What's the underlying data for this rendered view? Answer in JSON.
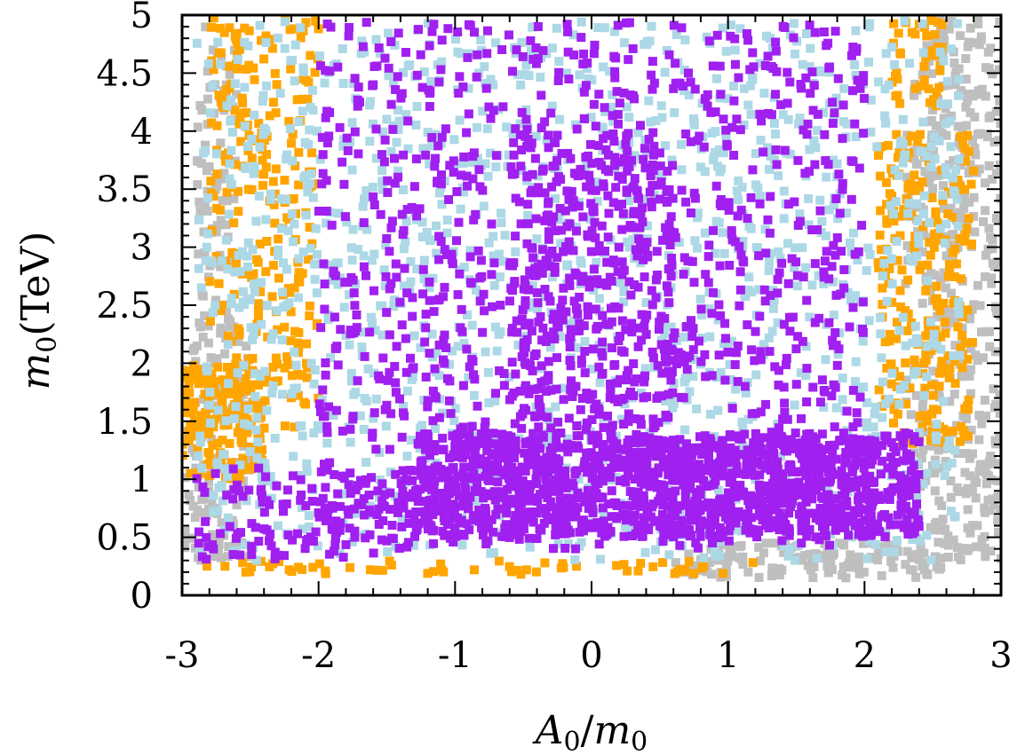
{
  "chart_data": {
    "type": "scatter",
    "title": "",
    "xlabel": "A0/m0",
    "xlabel_parts": {
      "a": "A",
      "a_sub": "0",
      "slash": "/",
      "m": "m",
      "m_sub": "0"
    },
    "ylabel": "m0(TeV)",
    "ylabel_parts": {
      "m": "m",
      "m_sub": "0",
      "unit": "(TeV)"
    },
    "xlim": [
      -3,
      3
    ],
    "ylim": [
      0,
      5
    ],
    "xticks": [
      -3,
      -2,
      -1,
      0,
      1,
      2,
      3
    ],
    "xtick_labels": [
      "-3",
      "-2",
      "-1",
      "0",
      "1",
      "2",
      "3"
    ],
    "yticks": [
      0,
      0.5,
      1,
      1.5,
      2,
      2.5,
      3,
      3.5,
      4,
      4.5,
      5
    ],
    "ytick_labels": [
      "0",
      "0.5",
      "1",
      "1.5",
      "2",
      "2.5",
      "3",
      "3.5",
      "4",
      "4.5",
      "5"
    ],
    "grid": false,
    "legend": false,
    "series": [
      {
        "name": "gray",
        "color": "#bfbfbf",
        "regions": [
          {
            "x": [
              2.3,
              3.0
            ],
            "y": [
              0.3,
              5.0
            ],
            "n": 420
          },
          {
            "x": [
              -3.0,
              -2.5
            ],
            "y": [
              0.3,
              2.2
            ],
            "n": 120
          },
          {
            "x": [
              -2.9,
              -2.6
            ],
            "y": [
              2.2,
              4.9
            ],
            "n": 90
          },
          {
            "x": [
              0.6,
              2.6
            ],
            "y": [
              0.15,
              0.45
            ],
            "n": 140
          }
        ]
      },
      {
        "name": "orange",
        "color": "#ffa500",
        "regions": [
          {
            "x": [
              -2.8,
              -2.0
            ],
            "y": [
              1.4,
              5.0
            ],
            "n": 260
          },
          {
            "x": [
              -3.0,
              -2.4
            ],
            "y": [
              1.0,
              2.0
            ],
            "n": 160
          },
          {
            "x": [
              2.1,
              2.8
            ],
            "y": [
              1.3,
              4.0
            ],
            "n": 240
          },
          {
            "x": [
              2.2,
              2.6
            ],
            "y": [
              4.2,
              5.0
            ],
            "n": 40
          },
          {
            "x": [
              -2.9,
              1.2
            ],
            "y": [
              0.18,
              0.3
            ],
            "n": 60
          }
        ]
      },
      {
        "name": "lightblue",
        "color": "#add8e6",
        "regions": [
          {
            "x": [
              -2.9,
              2.7
            ],
            "y": [
              0.3,
              4.95
            ],
            "n": 1400
          }
        ]
      },
      {
        "name": "purple",
        "color": "#a020f0",
        "regions": [
          {
            "x": [
              -2.0,
              2.0
            ],
            "y": [
              0.4,
              4.95
            ],
            "n": 1100
          },
          {
            "x": [
              -1.3,
              2.4
            ],
            "y": [
              0.5,
              1.4
            ],
            "n": 1300
          },
          {
            "x": [
              -2.9,
              -1.3
            ],
            "y": [
              0.3,
              1.1
            ],
            "n": 140
          },
          {
            "x": [
              -0.6,
              0.6
            ],
            "y": [
              1.4,
              4.0
            ],
            "n": 350
          }
        ]
      }
    ]
  }
}
